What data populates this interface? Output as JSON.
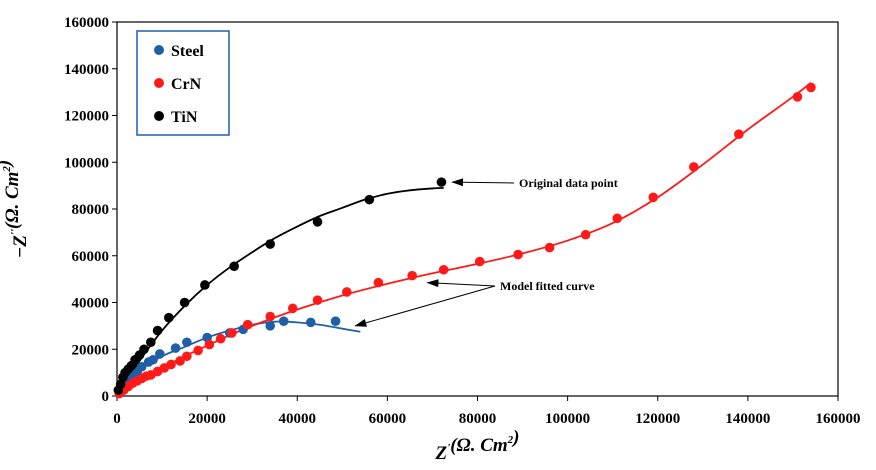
{
  "chart_data": {
    "type": "scatter",
    "title": "",
    "xlabel": "Z'(Ω. Cm²)",
    "ylabel": "−Z''(Ω. Cm²)",
    "xlim": [
      0,
      160000
    ],
    "ylim": [
      0,
      160000
    ],
    "x_ticks": [
      "0",
      "20000",
      "40000",
      "60000",
      "80000",
      "100000",
      "120000",
      "140000",
      "160000"
    ],
    "y_ticks": [
      "0",
      "20000",
      "40000",
      "60000",
      "80000",
      "100000",
      "120000",
      "140000",
      "160000"
    ],
    "grid": false,
    "legend_position": "top-left",
    "series": [
      {
        "name": "Steel",
        "color": "#1f5fa8",
        "points": [
          [
            500,
            2000
          ],
          [
            1500,
            4500
          ],
          [
            2500,
            6500
          ],
          [
            3500,
            8500
          ],
          [
            4500,
            10500
          ],
          [
            5500,
            12500
          ],
          [
            7000,
            14500
          ],
          [
            8000,
            15500
          ],
          [
            9500,
            18000
          ],
          [
            13000,
            20500
          ],
          [
            15500,
            23000
          ],
          [
            20000,
            25000
          ],
          [
            25000,
            27000
          ],
          [
            28000,
            28500
          ],
          [
            34000,
            30000
          ],
          [
            37000,
            32000
          ],
          [
            43000,
            31500
          ],
          [
            48500,
            32000
          ]
        ],
        "fit": [
          [
            0,
            0
          ],
          [
            5000,
            11000
          ],
          [
            10000,
            17000
          ],
          [
            15000,
            21000
          ],
          [
            20000,
            25000
          ],
          [
            25000,
            28000
          ],
          [
            30000,
            30500
          ],
          [
            35000,
            31800
          ],
          [
            40000,
            31500
          ],
          [
            45000,
            30500
          ],
          [
            50000,
            28800
          ],
          [
            54000,
            27500
          ]
        ]
      },
      {
        "name": "CrN",
        "color": "#ff1a1a",
        "points": [
          [
            500,
            1000
          ],
          [
            1500,
            2500
          ],
          [
            2500,
            4000
          ],
          [
            3500,
            5500
          ],
          [
            4500,
            6500
          ],
          [
            5500,
            7500
          ],
          [
            6500,
            8500
          ],
          [
            7500,
            9000
          ],
          [
            9000,
            10500
          ],
          [
            10500,
            12000
          ],
          [
            12000,
            13500
          ],
          [
            14000,
            15000
          ],
          [
            15500,
            17000
          ],
          [
            18000,
            19500
          ],
          [
            20500,
            22000
          ],
          [
            23000,
            24500
          ],
          [
            25500,
            27000
          ],
          [
            29000,
            30500
          ],
          [
            34000,
            34000
          ],
          [
            39000,
            37500
          ],
          [
            44500,
            41000
          ],
          [
            51000,
            44500
          ],
          [
            58000,
            48500
          ],
          [
            65500,
            51500
          ],
          [
            72500,
            54000
          ],
          [
            80500,
            57500
          ],
          [
            89000,
            60500
          ],
          [
            96000,
            63500
          ],
          [
            104000,
            69000
          ],
          [
            111000,
            76000
          ],
          [
            119000,
            85000
          ],
          [
            128000,
            98000
          ],
          [
            138000,
            112000
          ],
          [
            151000,
            128000
          ],
          [
            154000,
            132000
          ]
        ],
        "fit": [
          [
            0,
            0
          ],
          [
            5000,
            7000
          ],
          [
            10000,
            12000
          ],
          [
            15000,
            17000
          ],
          [
            20000,
            21500
          ],
          [
            25000,
            26000
          ],
          [
            30000,
            30000
          ],
          [
            40000,
            37000
          ],
          [
            50000,
            43000
          ],
          [
            60000,
            48000
          ],
          [
            70000,
            52500
          ],
          [
            80000,
            56500
          ],
          [
            90000,
            61000
          ],
          [
            100000,
            66500
          ],
          [
            110000,
            74000
          ],
          [
            120000,
            85000
          ],
          [
            130000,
            99000
          ],
          [
            140000,
            114000
          ],
          [
            150000,
            128000
          ],
          [
            154000,
            134000
          ]
        ]
      },
      {
        "name": "TiN",
        "color": "#000000",
        "points": [
          [
            300,
            2500
          ],
          [
            800,
            5000
          ],
          [
            1300,
            8000
          ],
          [
            1800,
            10000
          ],
          [
            2500,
            11500
          ],
          [
            3200,
            13000
          ],
          [
            4000,
            15500
          ],
          [
            5000,
            17500
          ],
          [
            6000,
            20000
          ],
          [
            7500,
            23000
          ],
          [
            9000,
            28000
          ],
          [
            11500,
            33500
          ],
          [
            15000,
            40000
          ],
          [
            19500,
            47500
          ],
          [
            26000,
            55500
          ],
          [
            34000,
            65000
          ],
          [
            44500,
            74500
          ],
          [
            56000,
            84000
          ],
          [
            72000,
            91500
          ]
        ],
        "fit": [
          [
            0,
            0
          ],
          [
            5000,
            15000
          ],
          [
            10000,
            28000
          ],
          [
            15000,
            38500
          ],
          [
            20000,
            47500
          ],
          [
            25000,
            55000
          ],
          [
            30000,
            61500
          ],
          [
            35000,
            67500
          ],
          [
            40000,
            72500
          ],
          [
            45000,
            77000
          ],
          [
            50000,
            80500
          ],
          [
            55000,
            84000
          ],
          [
            60000,
            86500
          ],
          [
            65000,
            88000
          ],
          [
            70000,
            88800
          ],
          [
            72500,
            89000
          ]
        ]
      }
    ],
    "annotations": [
      {
        "text": "Original data point",
        "target": [
          73500,
          91500
        ]
      },
      {
        "text": "Model fitted curve",
        "targets": [
          [
            68000,
            48500
          ],
          [
            52000,
            30000
          ]
        ]
      }
    ]
  }
}
